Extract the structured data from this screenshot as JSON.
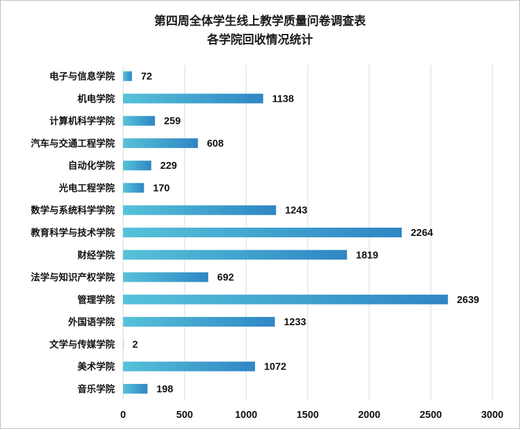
{
  "chart_data": {
    "type": "bar",
    "orientation": "horizontal",
    "title": "第四周全体学生线上教学质量问卷调查表",
    "subtitle": "各学院回收情况统计",
    "categories": [
      "电子与信息学院",
      "机电学院",
      "计算机科学学院",
      "汽车与交通工程学院",
      "自动化学院",
      "光电工程学院",
      "数学与系统科学学院",
      "教育科学与技术学院",
      "财经学院",
      "法学与知识产权学院",
      "管理学院",
      "外国语学院",
      "文学与传媒学院",
      "美术学院",
      "音乐学院"
    ],
    "values": [
      72,
      1138,
      259,
      608,
      229,
      170,
      1243,
      2264,
      1819,
      692,
      2639,
      1233,
      2,
      1072,
      198
    ],
    "xlim": [
      0,
      3000
    ],
    "xticks": [
      0,
      500,
      1000,
      1500,
      2000,
      2500,
      3000
    ],
    "grid": "vertical",
    "data_labels": true,
    "bar_gradient": [
      "#56c2d9",
      "#2f86c4"
    ]
  }
}
